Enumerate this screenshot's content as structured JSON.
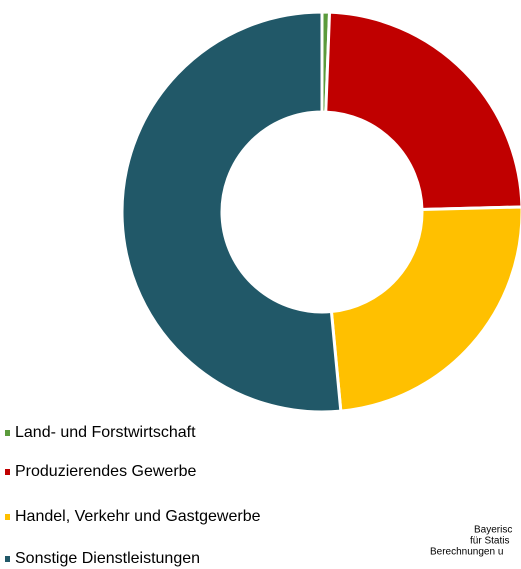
{
  "chart_data": {
    "type": "pie",
    "categories": [
      "Land- und Forstwirtschaft",
      "Produzierendes Gewerbe",
      "Handel, Verkehr und Gastgewerbe",
      "Sonstige Dienstleistungen"
    ],
    "values": [
      0.6,
      24.0,
      23.9,
      51.5
    ],
    "colors": [
      "#5b9b3c",
      "#c00000",
      "#ffc000",
      "#215868"
    ],
    "donut": true,
    "legend": "bottom-left",
    "source": [
      "Bayerisc",
      "für Statis",
      "Berechnungen u"
    ]
  }
}
